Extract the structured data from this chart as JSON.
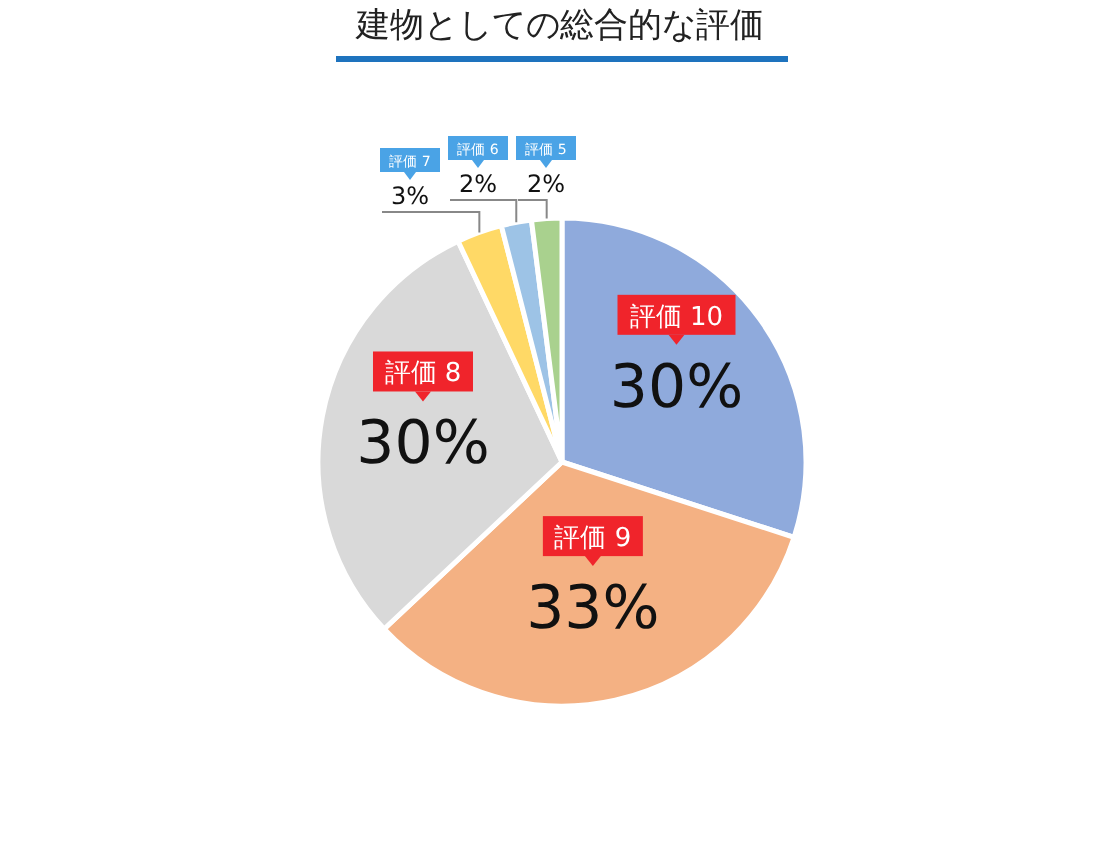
{
  "chart_data": {
    "type": "pie",
    "title": "建物としての総合的な評価",
    "categories": [
      "評価 10",
      "評価 9",
      "評価 8",
      "評価 7",
      "評価 6",
      "評価 5"
    ],
    "values": [
      30,
      33,
      30,
      3,
      2,
      2
    ],
    "value_labels": [
      "30%",
      "33%",
      "30%",
      "3%",
      "2%",
      "2%"
    ],
    "data_labels": true,
    "colors": [
      "#8faadc",
      "#f4b183",
      "#d9d9d9",
      "#ffd966",
      "#9dc3e6",
      "#a9d18e"
    ]
  }
}
